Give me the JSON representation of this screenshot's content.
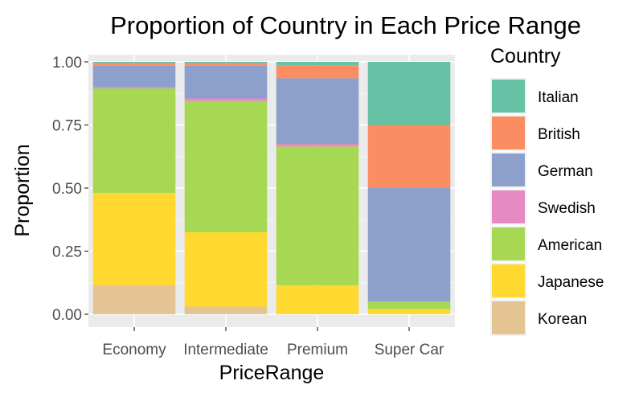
{
  "chart_data": {
    "type": "bar",
    "stacked": true,
    "title": "Proportion of Country in Each Price Range",
    "xlabel": "PriceRange",
    "ylabel": "Proportion",
    "ylim": [
      0,
      1
    ],
    "yticks": [
      "0.00",
      "0.25",
      "0.50",
      "0.75",
      "1.00"
    ],
    "ytick_values": [
      0,
      0.25,
      0.5,
      0.75,
      1
    ],
    "categories": [
      "Economy",
      "Intermediate",
      "Premium",
      "Super Car"
    ],
    "legend_title": "Country",
    "legend_position": "right",
    "grid": true,
    "series": [
      {
        "name": "Korean",
        "color": "#E5C494",
        "values": [
          0.115,
          0.03,
          0.0,
          0.0
        ]
      },
      {
        "name": "Japanese",
        "color": "#FFD92F",
        "values": [
          0.365,
          0.295,
          0.115,
          0.02
        ]
      },
      {
        "name": "American",
        "color": "#A6D854",
        "values": [
          0.415,
          0.52,
          0.55,
          0.03
        ]
      },
      {
        "name": "Swedish",
        "color": "#E78AC3",
        "values": [
          0.005,
          0.01,
          0.01,
          0.0
        ]
      },
      {
        "name": "German",
        "color": "#8DA0CB",
        "values": [
          0.085,
          0.13,
          0.26,
          0.45
        ]
      },
      {
        "name": "British",
        "color": "#FC8D62",
        "values": [
          0.01,
          0.01,
          0.05,
          0.25
        ]
      },
      {
        "name": "Italian",
        "color": "#66C2A5",
        "values": [
          0.005,
          0.005,
          0.015,
          0.25
        ]
      }
    ]
  }
}
